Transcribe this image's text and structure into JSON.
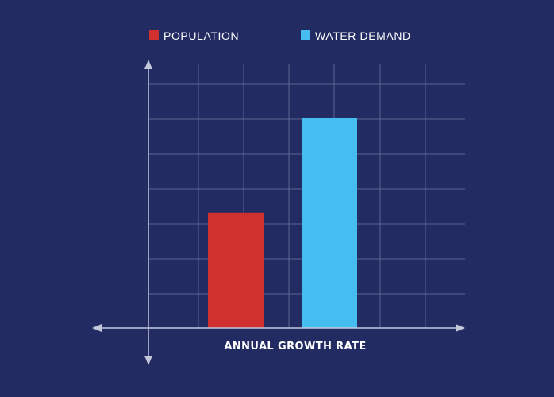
{
  "chart_data": {
    "type": "bar",
    "title": "",
    "xlabel": "ANNUAL GROWTH RATE",
    "ylabel": "",
    "categories": [
      ""
    ],
    "series": [
      {
        "name": "POPULATION",
        "values": [
          3.3
        ],
        "color": "#d0312f"
      },
      {
        "name": "WATER DEMAND",
        "values": [
          6.0
        ],
        "color": "#46bdf0"
      }
    ],
    "ylim": [
      0,
      7
    ],
    "grid": true,
    "legend_position": "top-center",
    "colors": {
      "background": "#222b62",
      "grid": "#5d6693",
      "axis": "#c3c7da",
      "text": "#ffffff"
    }
  }
}
